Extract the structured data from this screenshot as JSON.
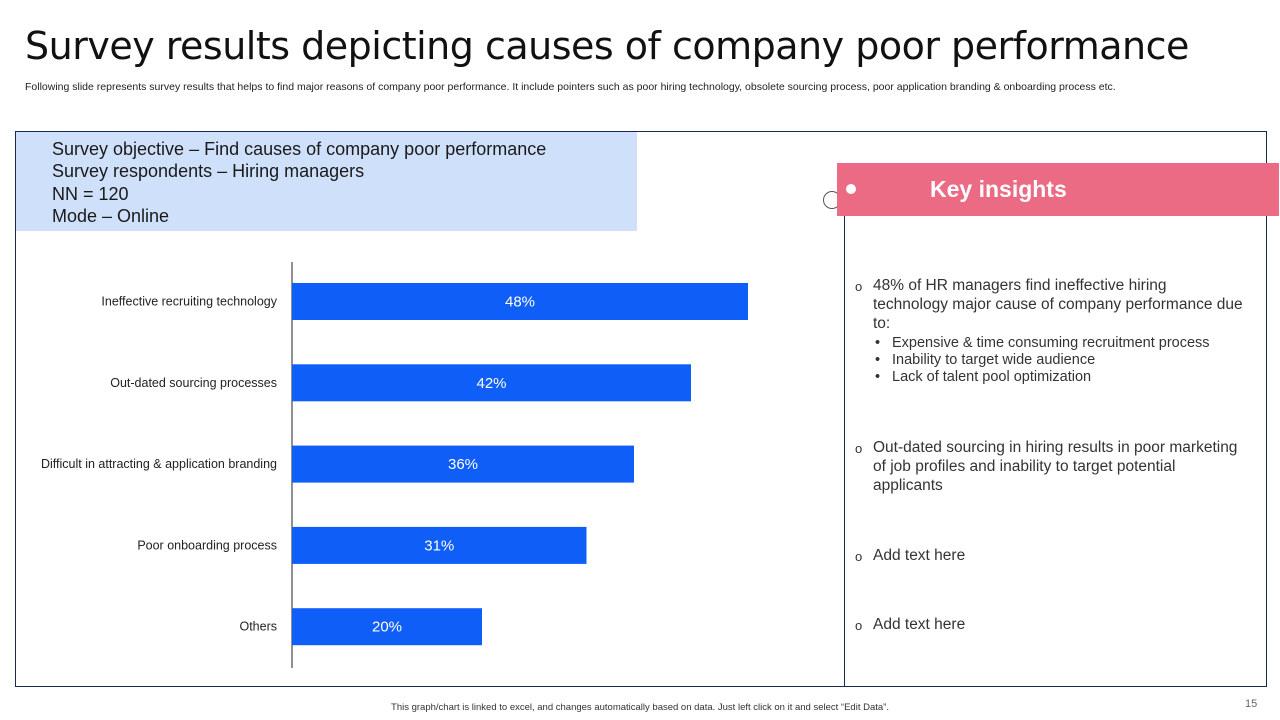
{
  "title": "Survey results depicting causes of company poor performance",
  "subtitle": "Following slide represents survey results that helps to find major reasons of company poor performance. It include pointers such as poor hiring technology, obsolete sourcing process, poor application branding & onboarding process etc.",
  "objective": {
    "lines": [
      "Survey objective – Find causes of company poor performance",
      "Survey respondents – Hiring managers",
      "NN = 120",
      "Mode – Online"
    ]
  },
  "chart_data": {
    "type": "bar",
    "orientation": "horizontal",
    "categories": [
      "Ineffective recruiting technology",
      "Out-dated sourcing processes",
      "Difficult in attracting & application branding",
      "Poor onboarding process",
      "Others"
    ],
    "values": [
      48,
      42,
      36,
      31,
      20
    ],
    "value_labels": [
      "48%",
      "42%",
      "36%",
      "31%",
      "20%"
    ],
    "unit": "%",
    "xlim": [
      0,
      50
    ],
    "bar_color": "#0f5ef7",
    "title": "",
    "xlabel": "",
    "ylabel": ""
  },
  "key_insights": {
    "title": "Key insights",
    "header_color": "#eb6a84",
    "marker": "o",
    "bullet": "•",
    "items": [
      {
        "text": "48% of HR managers find ineffective hiring technology major cause of company performance due to:",
        "sub": [
          "Expensive & time consuming recruitment process",
          "Inability to target wide audience",
          "Lack of talent pool optimization"
        ]
      },
      {
        "text": "Out-dated sourcing in hiring results in poor marketing of job profiles and inability to target potential applicants"
      },
      {
        "text": "Add text here"
      },
      {
        "text": "Add text here"
      }
    ]
  },
  "footnote": "This graph/chart is linked to excel, and changes automatically based on data. Just left click on it and select “Edit Data”.",
  "page_number": "15"
}
